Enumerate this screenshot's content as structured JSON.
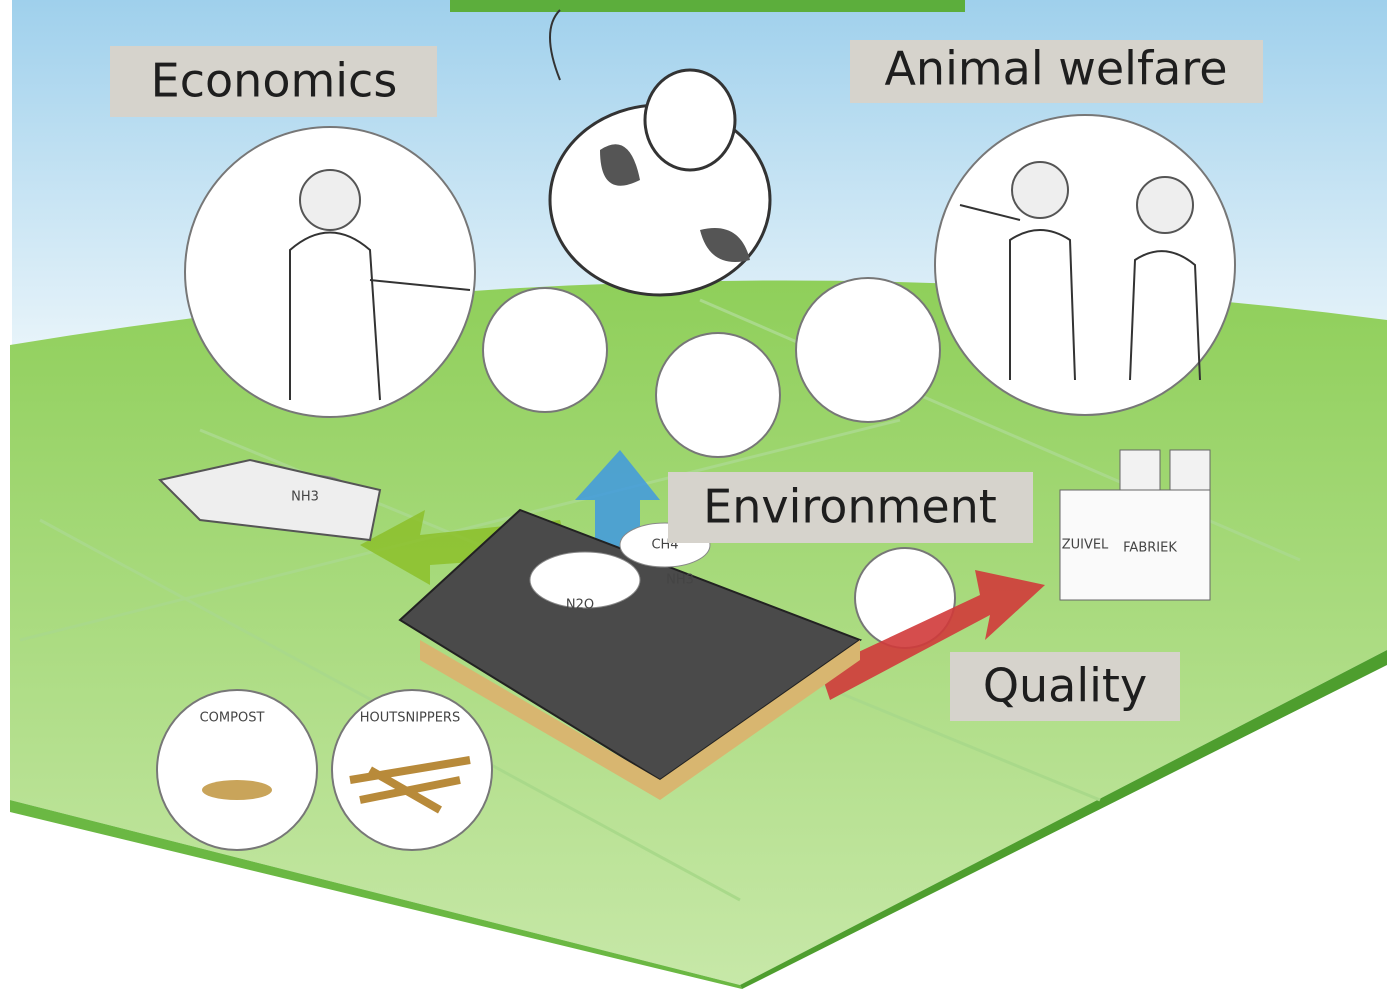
{
  "labels": [
    "Economics",
    "Animal welfare",
    "Environment",
    "Quality"
  ],
  "sketch_texts": [
    "COMPOST",
    "HOUTSNIPPERS",
    "NH3",
    "CH4",
    "N2O",
    "NH3",
    "ZUIVEL",
    "FABRIEK"
  ]
}
